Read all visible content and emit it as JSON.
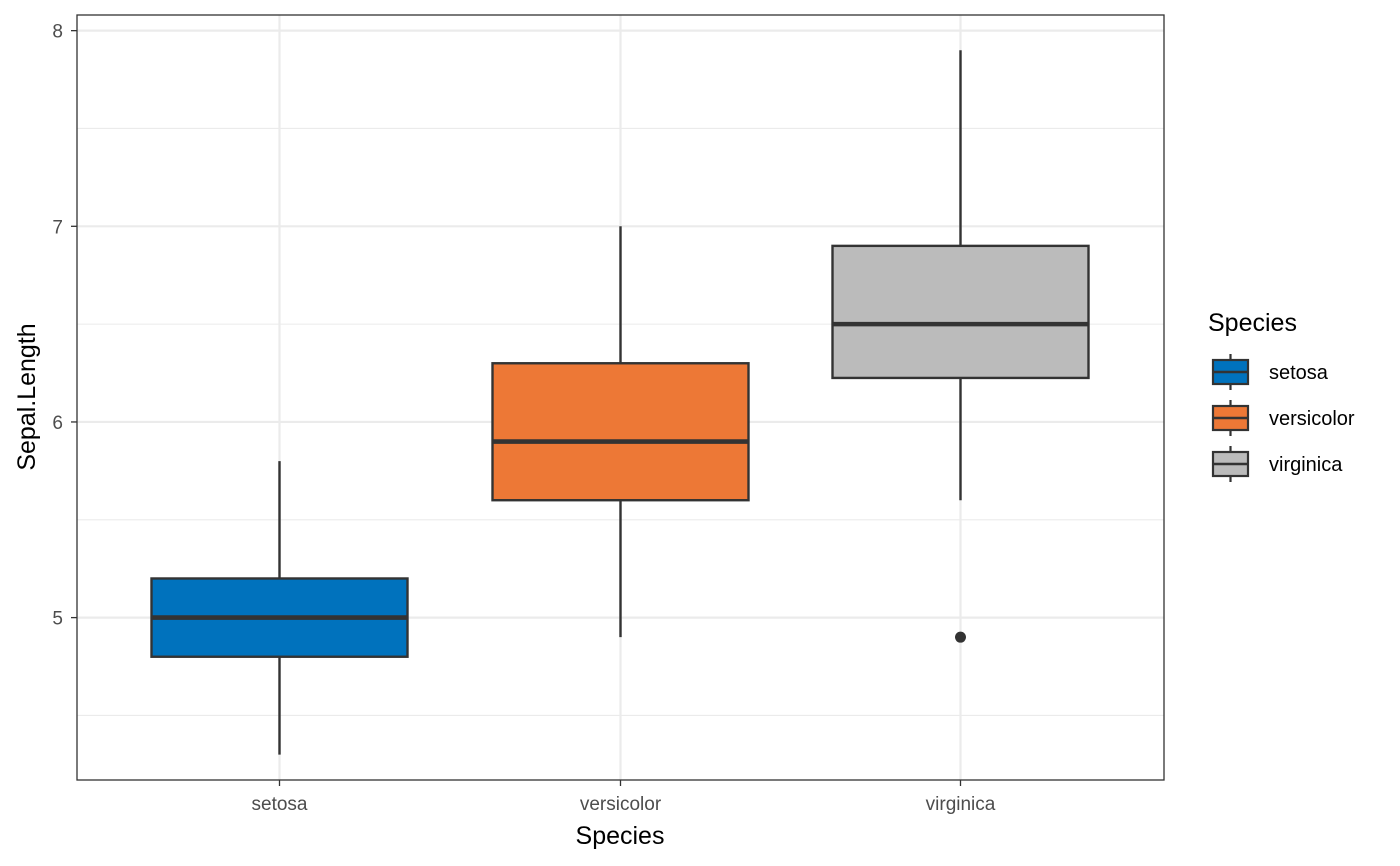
{
  "chart_data": {
    "type": "boxplot",
    "xlabel": "Species",
    "ylabel": "Sepal.Length",
    "categories": [
      "setosa",
      "versicolor",
      "virginica"
    ],
    "ylim": [
      4.17,
      8.08
    ],
    "y_ticks": [
      5,
      6,
      7,
      8
    ],
    "y_minor_ticks": [
      4.5,
      5.5,
      6.5,
      7.5
    ],
    "grid": true,
    "series": [
      {
        "name": "setosa",
        "color": "#0072BD",
        "min": 4.3,
        "q1": 4.8,
        "median": 5.0,
        "q3": 5.2,
        "max": 5.8,
        "outliers": []
      },
      {
        "name": "versicolor",
        "color": "#ED7836",
        "min": 4.9,
        "q1": 5.6,
        "median": 5.9,
        "q3": 6.3,
        "max": 7.0,
        "outliers": []
      },
      {
        "name": "virginica",
        "color": "#BBBBBB",
        "min": 5.6,
        "q1": 6.225,
        "median": 6.5,
        "q3": 6.9,
        "max": 7.9,
        "outliers": [
          4.9
        ]
      }
    ],
    "legend": {
      "title": "Species",
      "position": "right",
      "items": [
        "setosa",
        "versicolor",
        "virginica"
      ]
    }
  }
}
